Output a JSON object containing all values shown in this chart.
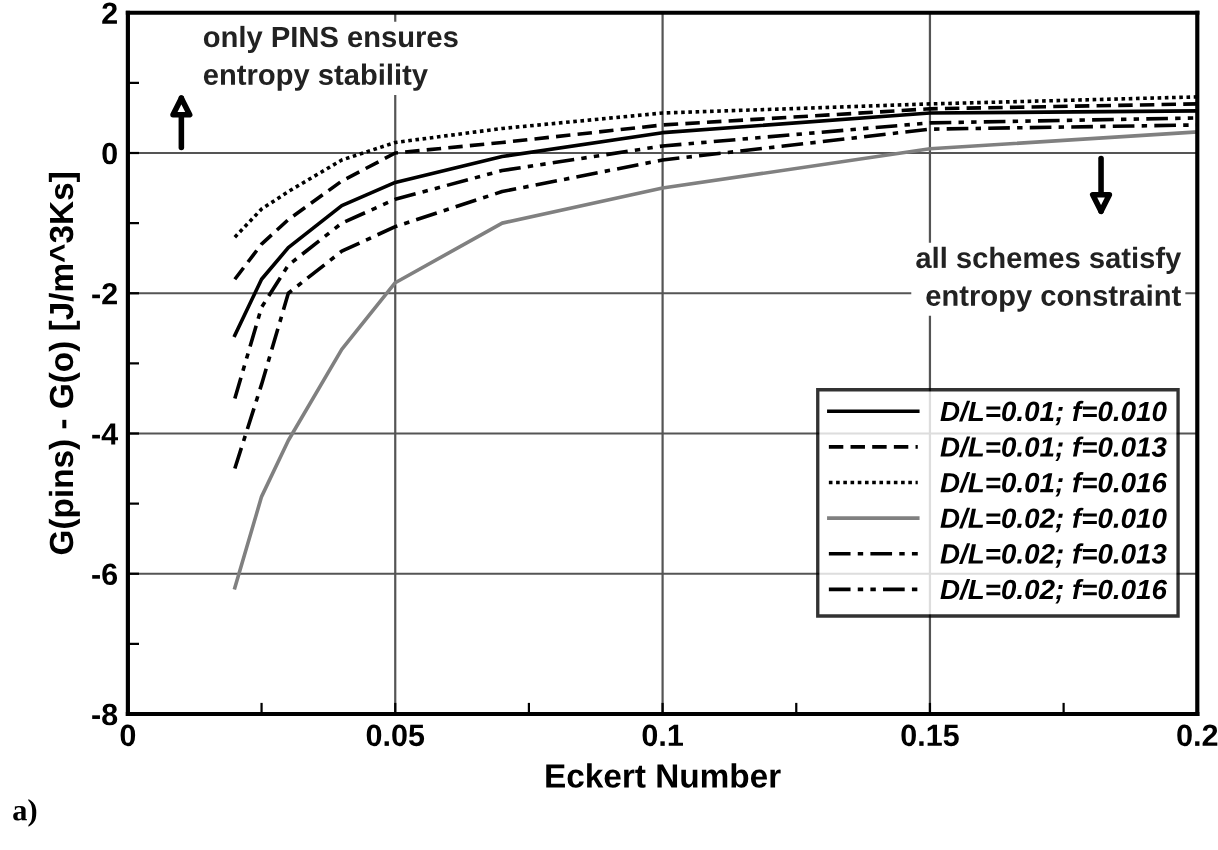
{
  "chart_data": {
    "type": "line",
    "xlabel": "Eckert Number",
    "ylabel": "G(pins) - G(o) [J/m^3Ks]",
    "xlim": [
      0,
      0.2
    ],
    "xticks": [
      0,
      {
        "value": 0.025,
        "label": null
      },
      0.05,
      {
        "value": 0.075,
        "label": null
      },
      0.1,
      {
        "value": 0.125,
        "label": null
      },
      0.15,
      {
        "value": 0.175,
        "label": null
      },
      0.2
    ],
    "ylim": [
      -8,
      2
    ],
    "yticks": [
      -8,
      {
        "value": -7,
        "label": null
      },
      -6,
      {
        "value": -5,
        "label": null
      },
      -4,
      {
        "value": -3,
        "label": null
      },
      -2,
      {
        "value": -1,
        "label": null
      },
      0,
      {
        "value": 1,
        "label": null
      },
      2
    ],
    "grid": true,
    "legend": "bottom right",
    "marker": "none",
    "x": [
      0.02,
      0.025,
      0.03,
      0.04,
      0.05,
      0.07,
      0.1,
      0.15,
      0.2
    ],
    "series": [
      {
        "name": "D/L=0.01; f=0.010",
        "color": "#000000",
        "line_style": "solid",
        "values": [
          -2.6,
          -1.8,
          -1.35,
          -0.75,
          -0.42,
          -0.05,
          0.29,
          0.57,
          0.6
        ]
      },
      {
        "name": "D/L=0.01; f=0.013",
        "color": "#000000",
        "line_style": "dashed",
        "values": [
          -1.8,
          -1.3,
          -0.95,
          -0.4,
          0,
          0.15,
          0.4,
          0.63,
          0.7
        ]
      },
      {
        "name": "D/L=0.01; f=0.016",
        "color": "#000000",
        "line_style": "dotted",
        "values": [
          -1.2,
          -0.8,
          -0.55,
          -0.1,
          0.15,
          0.35,
          0.57,
          0.7,
          0.8
        ]
      },
      {
        "name": "D/L=0.02; f=0.010",
        "color": "#808080",
        "line_style": "solid",
        "values": [
          -6.2,
          -4.9,
          -4.1,
          -2.8,
          -1.85,
          -1.0,
          -0.5,
          0.06,
          0.3
        ]
      },
      {
        "name": "D/L=0.02; f=0.013",
        "color": "#000000",
        "line_style": "dashdot",
        "values": [
          -4.5,
          -3.3,
          -2.0,
          -1.4,
          -1.05,
          -0.55,
          -0.1,
          0.34,
          0.4
        ]
      },
      {
        "name": "D/L=0.02; f=0.016",
        "color": "#000000",
        "line_style": "dashdotdot",
        "values": [
          -3.5,
          -2.2,
          -1.6,
          -1.0,
          -0.66,
          -0.25,
          0.1,
          0.43,
          0.5
        ]
      }
    ],
    "annotations": [
      "only PINS ensures\nentropy stability",
      "all schemes satisfy\nentropy constraint",
      "a)"
    ]
  }
}
